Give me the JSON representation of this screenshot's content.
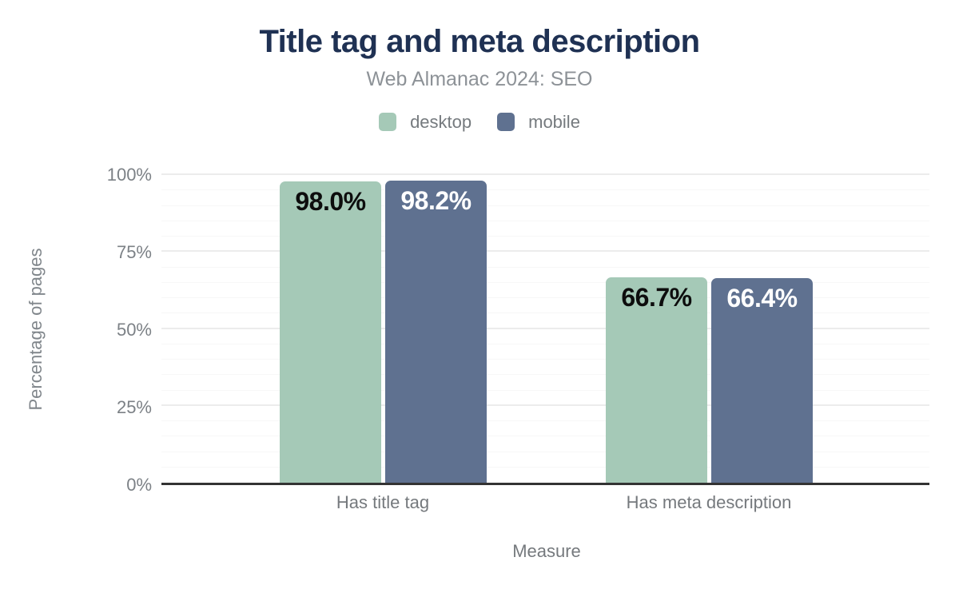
{
  "chart_data": {
    "type": "bar",
    "title": "Title tag and meta description",
    "subtitle": "Web Almanac 2024: SEO",
    "xlabel": "Measure",
    "ylabel": "Percentage of pages",
    "categories": [
      "Has title tag",
      "Has meta description"
    ],
    "series": [
      {
        "name": "desktop",
        "color": "#a5c9b7",
        "values": [
          98.0,
          66.7
        ],
        "labels": [
          "98.0%",
          "66.7%"
        ]
      },
      {
        "name": "mobile",
        "color": "#5f7190",
        "values": [
          98.2,
          66.4
        ],
        "labels": [
          "98.2%",
          "66.4%"
        ]
      }
    ],
    "ylim": [
      0,
      100
    ],
    "ytick_labels": [
      "0%",
      "25%",
      "50%",
      "75%",
      "100%"
    ],
    "minor_grid_step": 5,
    "major_grid_step": 25,
    "grid": "horizontal",
    "legend_position": "top"
  },
  "colors": {
    "title": "#1f3153",
    "subtitle": "#8d9297",
    "axis_text": "#7c8186",
    "axis_line": "#333333",
    "major_gridline": "#ececec",
    "minor_gridline": "#f7f7f7",
    "desktop": "#a5c9b7",
    "mobile": "#5f7190",
    "background": "#ffffff"
  }
}
